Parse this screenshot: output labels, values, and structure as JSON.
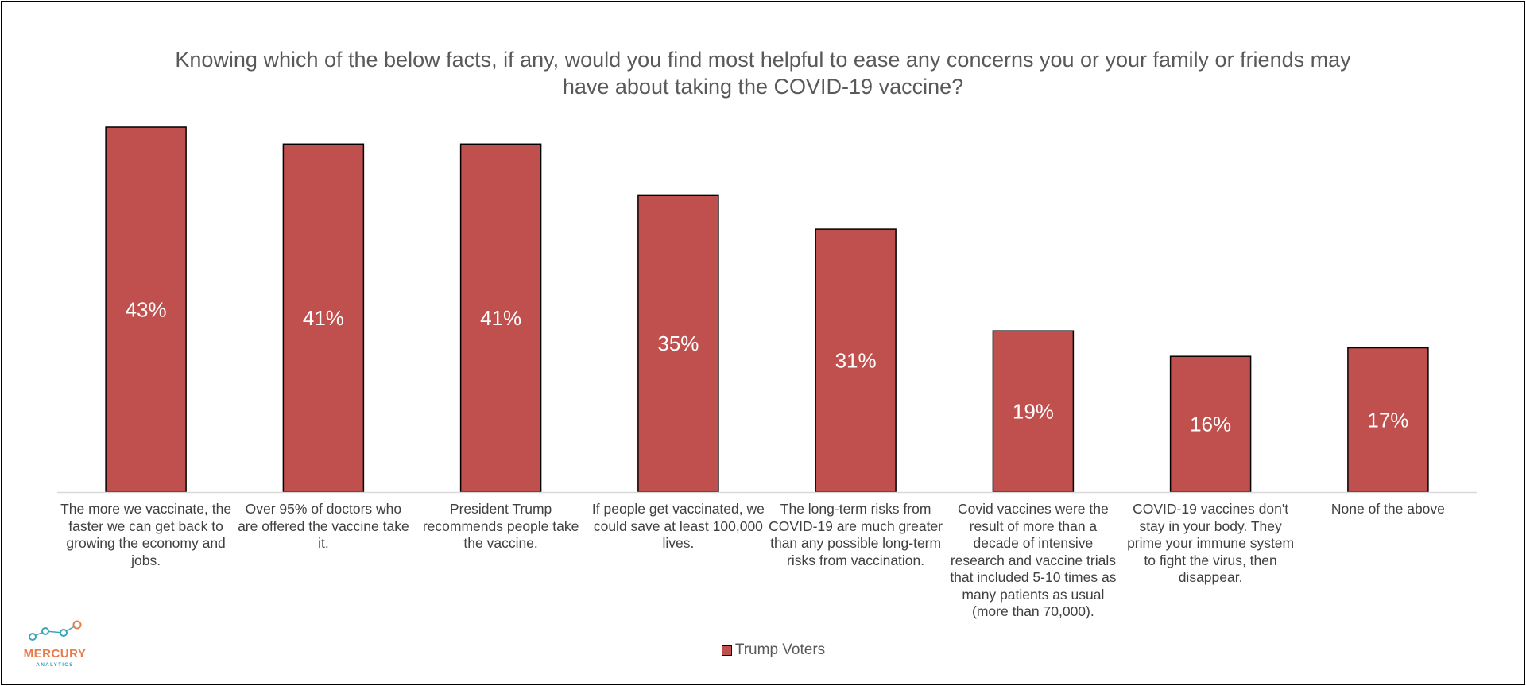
{
  "chart_data": {
    "type": "bar",
    "title": "Knowing which of the below facts, if any, would you find most helpful to ease any concerns you or your family or friends may have about taking the COVID-19 vaccine?",
    "categories": [
      "The more we vaccinate, the faster we can get back to growing the economy and jobs.",
      "Over 95% of doctors who are offered the vaccine take it.",
      "President Trump recommends people take the vaccine.",
      "If people get vaccinated, we could save at least 100,000 lives.",
      "The long-term risks from COVID-19 are much greater than any possible long-term risks from vaccination.",
      "Covid vaccines were the result of more than a decade of intensive research and vaccine trials that included 5-10 times as many patients as usual (more than 70,000).",
      "COVID-19 vaccines don't stay in your body. They prime your immune system to fight the virus, then disappear.",
      "None of the above"
    ],
    "series": [
      {
        "name": "Trump Voters",
        "values": [
          43,
          41,
          41,
          35,
          31,
          19,
          16,
          17
        ],
        "labels": [
          "43%",
          "41%",
          "41%",
          "35%",
          "31%",
          "19%",
          "16%",
          "17%"
        ],
        "color": "#c0504d"
      }
    ],
    "ylim": [
      0,
      43
    ],
    "grid": false,
    "legend_position": "bottom"
  },
  "logo": {
    "name": "MERCURY",
    "sub": "ANALYTICS",
    "colors": {
      "orange": "#e97c4a",
      "teal": "#3aa5b8"
    }
  }
}
